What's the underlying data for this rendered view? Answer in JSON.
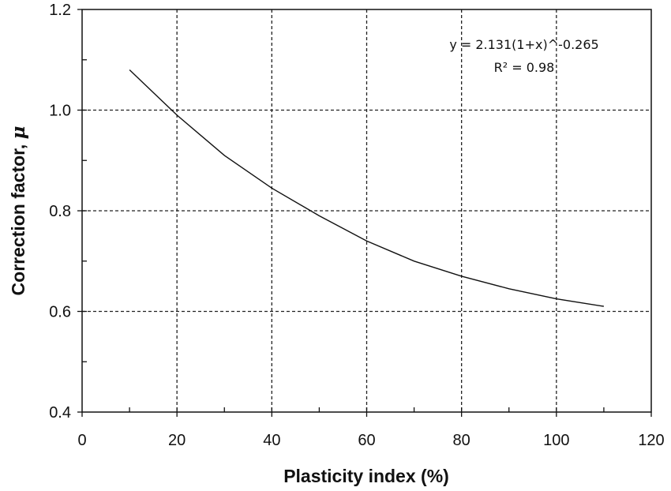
{
  "chart_data": {
    "type": "line",
    "xlabel": "Plasticity index (%)",
    "ylabel_text": "Correction factor, ",
    "ylabel_symbol": "μ",
    "xlim": [
      0,
      120
    ],
    "ylim": [
      0.4,
      1.2
    ],
    "x_ticks": [
      0,
      20,
      40,
      60,
      80,
      100,
      120
    ],
    "x_tick_labels": [
      "0",
      "20",
      "40",
      "60",
      "80",
      "100",
      "120"
    ],
    "y_ticks": [
      0.4,
      0.6,
      0.8,
      1.0,
      1.2
    ],
    "y_tick_labels": [
      "0.4",
      "0.6",
      "0.8",
      "1.0",
      "1.2"
    ],
    "x_minor_step": 10,
    "y_minor_step": 0.1,
    "grid": true,
    "grid_style": "dashed",
    "annotations": {
      "equation": "y = 2.131(1+x)^-0.265",
      "r_squared": "R² = 0.98"
    },
    "series": [
      {
        "x": [
          10,
          20,
          30,
          40,
          50,
          60,
          70,
          80,
          90,
          100,
          110
        ],
        "y": [
          1.08,
          0.99,
          0.91,
          0.845,
          0.79,
          0.74,
          0.7,
          0.67,
          0.645,
          0.625,
          0.61
        ]
      }
    ]
  }
}
